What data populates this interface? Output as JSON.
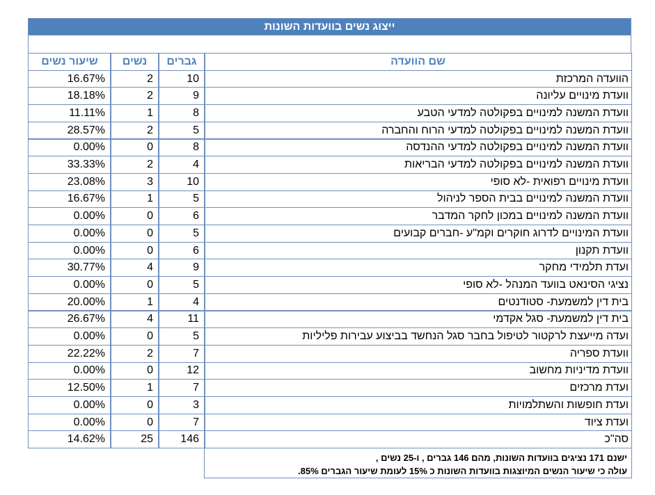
{
  "title": "ייצוג נשים בוועדות השונות",
  "table": {
    "headers": [
      "שם הוועדה",
      "גברים",
      "נשים",
      "שיעור נשים"
    ],
    "rows": [
      [
        "הוועדה המרכזת",
        "10",
        "2",
        "16.67%"
      ],
      [
        "וועדת מינויים עליונה",
        "9",
        "2",
        "18.18%"
      ],
      [
        "וועדת המשנה למינויים בפקולטה למדעי הטבע",
        "8",
        "1",
        "11.11%"
      ],
      [
        "וועדת המשנה למינויים בפקולטה למדעי הרוח והחברה",
        "5",
        "2",
        "28.57%"
      ],
      [
        "וועדת המשנה למינויים בפקולטה למדעי ההנדסה",
        "8",
        "0",
        "0.00%"
      ],
      [
        "וועדת המשנה למינויים בפקולטה למדעי הבריאות",
        "4",
        "2",
        "33.33%"
      ],
      [
        "וועדת מינויים רפואית -לא סופי",
        "10",
        "3",
        "23.08%"
      ],
      [
        "וועדת המשנה למינויים בבית הספר לניהול",
        "5",
        "1",
        "16.67%"
      ],
      [
        "וועדת המשנה למינויים במכון לחקר המדבר",
        "6",
        "0",
        "0.00%"
      ],
      [
        "וועדת המינויים לדרוג חוקרים וקמ\"ע -חברים קבועים",
        "5",
        "0",
        "0.00%"
      ],
      [
        "וועדת תקנון",
        "6",
        "0",
        "0.00%"
      ],
      [
        "ועדת תלמידי מחקר",
        "9",
        "4",
        "30.77%"
      ],
      [
        "נציגי הסינאט בוועד המנהל -לא סופי",
        "5",
        "0",
        "0.00%"
      ],
      [
        "בית דין למשמעת- סטודנטים",
        "4",
        "1",
        "20.00%"
      ],
      [
        "בית דין למשמעת- סגל אקדמי",
        "11",
        "4",
        "26.67%"
      ],
      [
        "ועדה מייעצת לרקטור לטיפול בחבר סגל הנחשד בביצוע עבירות פליליות",
        "5",
        "0",
        "0.00%"
      ],
      [
        "וועדת ספריה",
        "7",
        "2",
        "22.22%"
      ],
      [
        "וועדת מדיניות מחשוב",
        "12",
        "0",
        "0.00%"
      ],
      [
        "ועדת מרכזים",
        "7",
        "1",
        "12.50%"
      ],
      [
        "ועדת חופשות והשתלמויות",
        "3",
        "0",
        "0.00%"
      ],
      [
        "ועדת ציוד",
        "7",
        "0",
        "0.00%"
      ],
      [
        "סה\"כ",
        "146",
        "25",
        "14.62%"
      ]
    ]
  },
  "note": [
    "ישנם 171 נציגים בוועדות השונות, מהם 146 גברים , ו-25 נשים ,",
    "עולה כי שיעור הנשים המיוצגות בוועדות השונות כ 15% לעומת שיעור הגברים 85%."
  ]
}
